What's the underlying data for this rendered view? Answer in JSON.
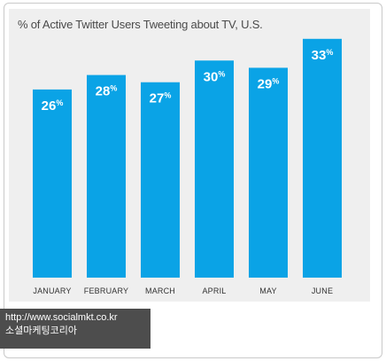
{
  "chart_data": {
    "type": "bar",
    "title": "% of Active Twitter Users Tweeting about TV, U.S.",
    "categories": [
      "JANUARY",
      "FEBRUARY",
      "MARCH",
      "APRIL",
      "MAY",
      "JUNE"
    ],
    "values": [
      26,
      28,
      27,
      30,
      29,
      33
    ],
    "value_suffix": "%",
    "ylim": [
      0,
      38
    ],
    "grid": false,
    "legend": "none",
    "bar_color": "#0aa3e6"
  },
  "credit": {
    "line1": "http://www.socialmkt.co.kr",
    "line2": "소셜마케팅코리아"
  },
  "colors": {
    "panel": "#efefef",
    "credit_bg": "#4d4d4d"
  }
}
